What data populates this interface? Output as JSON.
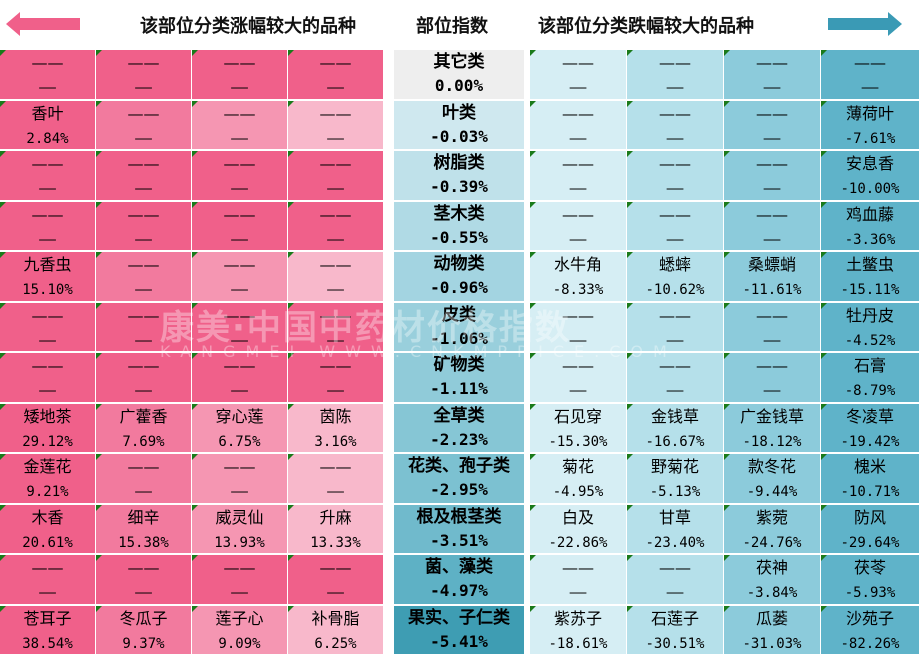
{
  "header": {
    "left_title": "该部位分类涨幅较大的品种",
    "center_title": "部位指数",
    "right_title": "该部位分类跌幅较大的品种",
    "left_arrow_color": "#f0608a",
    "right_arrow_color": "#3a9ab5"
  },
  "watermark": {
    "line1": "康美·中国中药材价格指数",
    "line2": "KANGMEI WWW.CNKMPRICE.COM"
  },
  "placeholder": "——",
  "chart_data": {
    "type": "table",
    "rows": [
      {
        "category": "其它类",
        "index": "0.00%",
        "gainers": [
          null,
          null,
          null,
          null
        ],
        "losers": [
          null,
          null,
          null,
          null
        ]
      },
      {
        "category": "叶类",
        "index": "-0.03%",
        "gainers": [
          {
            "name": "香叶",
            "value": "2.84%"
          },
          null,
          null,
          null
        ],
        "losers": [
          null,
          null,
          null,
          {
            "name": "薄荷叶",
            "value": "-7.61%"
          }
        ]
      },
      {
        "category": "树脂类",
        "index": "-0.39%",
        "gainers": [
          null,
          null,
          null,
          null
        ],
        "losers": [
          null,
          null,
          null,
          {
            "name": "安息香",
            "value": "-10.00%"
          }
        ]
      },
      {
        "category": "茎木类",
        "index": "-0.55%",
        "gainers": [
          null,
          null,
          null,
          null
        ],
        "losers": [
          null,
          null,
          null,
          {
            "name": "鸡血藤",
            "value": "-3.36%"
          }
        ]
      },
      {
        "category": "动物类",
        "index": "-0.96%",
        "gainers": [
          {
            "name": "九香虫",
            "value": "15.10%"
          },
          null,
          null,
          null
        ],
        "losers": [
          {
            "name": "水牛角",
            "value": "-8.33%"
          },
          {
            "name": "蟋蟀",
            "value": "-10.62%"
          },
          {
            "name": "桑螵蛸",
            "value": "-11.61%"
          },
          {
            "name": "土鳖虫",
            "value": "-15.11%"
          }
        ]
      },
      {
        "category": "皮类",
        "index": "-1.06%",
        "gainers": [
          null,
          null,
          null,
          null
        ],
        "losers": [
          null,
          null,
          null,
          {
            "name": "牡丹皮",
            "value": "-4.52%"
          }
        ]
      },
      {
        "category": "矿物类",
        "index": "-1.11%",
        "gainers": [
          null,
          null,
          null,
          null
        ],
        "losers": [
          null,
          null,
          null,
          {
            "name": "石膏",
            "value": "-8.79%"
          }
        ]
      },
      {
        "category": "全草类",
        "index": "-2.23%",
        "gainers": [
          {
            "name": "矮地茶",
            "value": "29.12%"
          },
          {
            "name": "广藿香",
            "value": "7.69%"
          },
          {
            "name": "穿心莲",
            "value": "6.75%"
          },
          {
            "name": "茵陈",
            "value": "3.16%"
          }
        ],
        "losers": [
          {
            "name": "石见穿",
            "value": "-15.30%"
          },
          {
            "name": "金钱草",
            "value": "-16.67%"
          },
          {
            "name": "广金钱草",
            "value": "-18.12%"
          },
          {
            "name": "冬凌草",
            "value": "-19.42%"
          }
        ]
      },
      {
        "category": "花类、孢子类",
        "index": "-2.95%",
        "gainers": [
          {
            "name": "金莲花",
            "value": "9.21%"
          },
          null,
          null,
          null
        ],
        "losers": [
          {
            "name": "菊花",
            "value": "-4.95%"
          },
          {
            "name": "野菊花",
            "value": "-5.13%"
          },
          {
            "name": "款冬花",
            "value": "-9.44%"
          },
          {
            "name": "槐米",
            "value": "-10.71%"
          }
        ]
      },
      {
        "category": "根及根茎类",
        "index": "-3.51%",
        "gainers": [
          {
            "name": "木香",
            "value": "20.61%"
          },
          {
            "name": "细辛",
            "value": "15.38%"
          },
          {
            "name": "威灵仙",
            "value": "13.93%"
          },
          {
            "name": "升麻",
            "value": "13.33%"
          }
        ],
        "losers": [
          {
            "name": "白及",
            "value": "-22.86%"
          },
          {
            "name": "甘草",
            "value": "-23.40%"
          },
          {
            "name": "紫菀",
            "value": "-24.76%"
          },
          {
            "name": "防风",
            "value": "-29.64%"
          }
        ]
      },
      {
        "category": "菌、藻类",
        "index": "-4.97%",
        "gainers": [
          null,
          null,
          null,
          null
        ],
        "losers": [
          null,
          null,
          {
            "name": "茯神",
            "value": "-3.84%"
          },
          {
            "name": "茯苓",
            "value": "-5.93%"
          }
        ]
      },
      {
        "category": "果实、子仁类",
        "index": "-5.41%",
        "gainers": [
          {
            "name": "苍耳子",
            "value": "38.54%"
          },
          {
            "name": "冬瓜子",
            "value": "9.37%"
          },
          {
            "name": "莲子心",
            "value": "9.09%"
          },
          {
            "name": "补骨脂",
            "value": "6.25%"
          }
        ],
        "losers": [
          {
            "name": "紫苏子",
            "value": "-18.61%"
          },
          {
            "name": "石莲子",
            "value": "-30.51%"
          },
          {
            "name": "瓜蒌",
            "value": "-31.03%"
          },
          {
            "name": "沙苑子",
            "value": "-82.26%"
          }
        ]
      }
    ]
  },
  "colors": {
    "gainer_columns": [
      "#f0608a",
      "#f27a9e",
      "#f596b2",
      "#f8b8cb"
    ],
    "gainer_dash_row": "#f0608a",
    "loser_columns": [
      "#d6eef4",
      "#b5e0ea",
      "#8ccbdb",
      "#5fb3c9"
    ],
    "index_bg": [
      "#eeeeee",
      "#cfe8ef",
      "#bfe1ea",
      "#b0dae5",
      "#a3d4e1",
      "#99cfdc",
      "#90cbd9",
      "#86c6d5",
      "#7cc1d1",
      "#70bacc",
      "#5eb1c5",
      "#3e9db3"
    ]
  }
}
